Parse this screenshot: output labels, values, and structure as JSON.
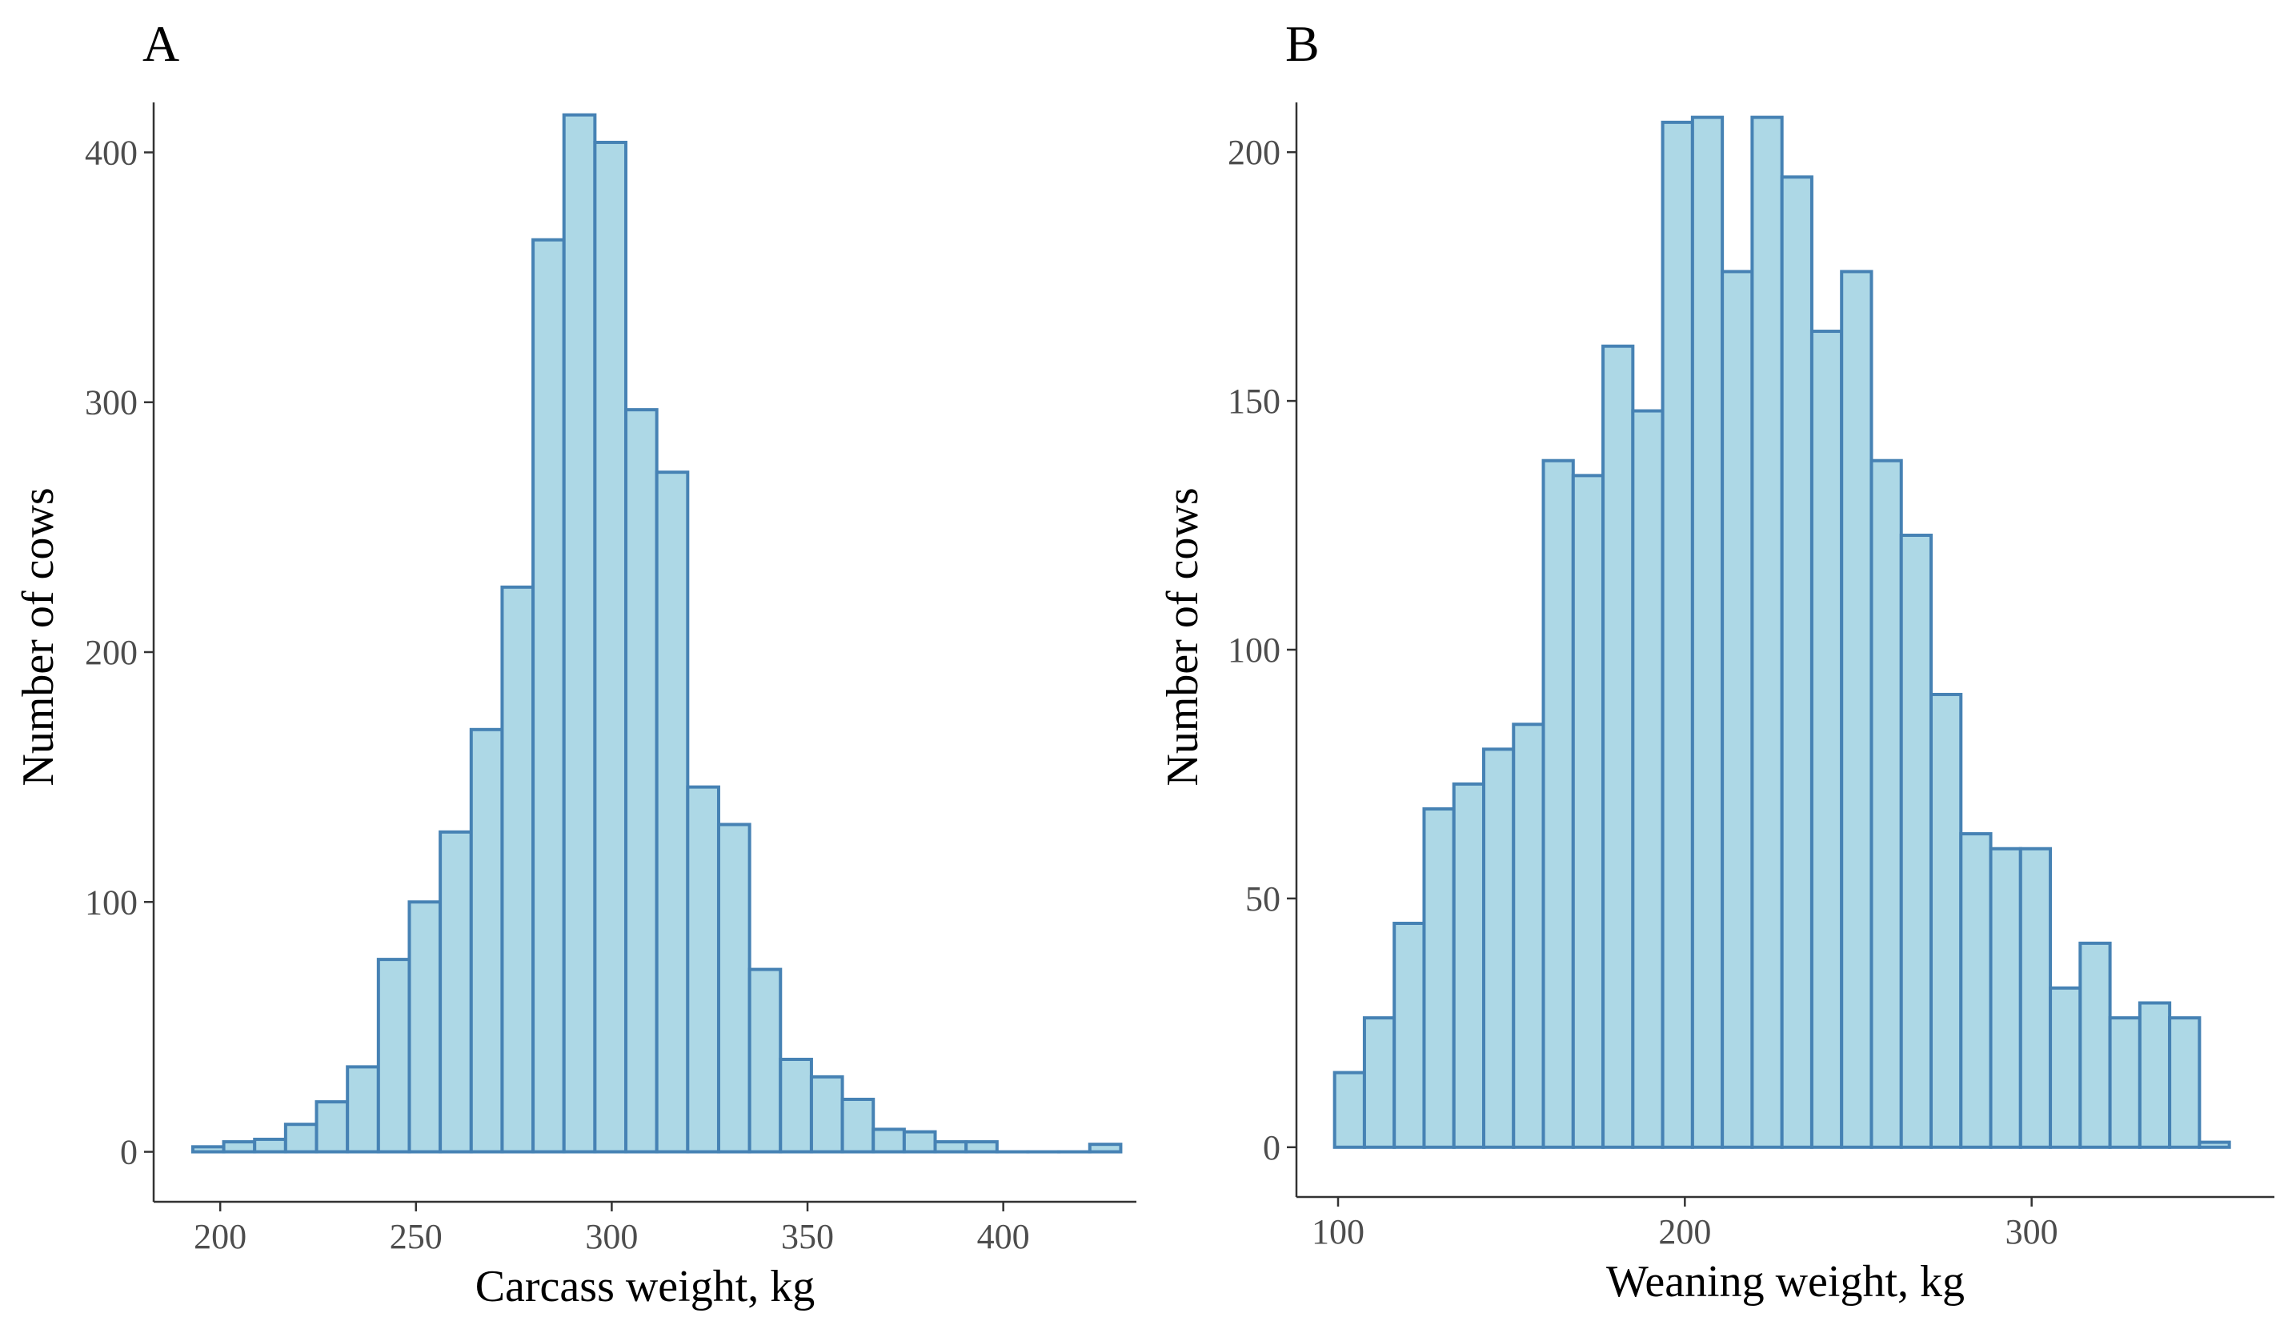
{
  "chart_data": [
    {
      "type": "bar",
      "panel_label": "A",
      "title": "",
      "xlabel": "Carcass weight, kg",
      "ylabel": "Number of cows",
      "xlim": [
        183,
        434
      ],
      "ylim": [
        -20,
        420
      ],
      "xticks": [
        200,
        250,
        300,
        350,
        400
      ],
      "yticks": [
        0,
        100,
        200,
        300,
        400
      ],
      "bin_start": 193,
      "bin_width": 7.9,
      "values": [
        2,
        4,
        5,
        11,
        20,
        34,
        77,
        100,
        128,
        169,
        226,
        365,
        415,
        404,
        297,
        272,
        146,
        131,
        73,
        37,
        30,
        21,
        9,
        8,
        4,
        4,
        0,
        0,
        0,
        3
      ],
      "fill_color": "#add8e6",
      "edge_color": "#4682b4",
      "grid": false,
      "legend": "none"
    },
    {
      "type": "bar",
      "panel_label": "B",
      "title": "",
      "xlabel": "Weaning weight, kg",
      "ylabel": "Number of cows",
      "xlim": [
        88,
        370
      ],
      "ylim": [
        -10,
        210
      ],
      "xticks": [
        100,
        200,
        300
      ],
      "yticks": [
        0,
        50,
        100,
        150,
        200
      ],
      "bin_start": 99,
      "bin_width": 8.6,
      "values": [
        15,
        26,
        45,
        68,
        73,
        80,
        85,
        138,
        135,
        161,
        148,
        206,
        207,
        176,
        207,
        195,
        164,
        176,
        138,
        123,
        91,
        63,
        60,
        60,
        32,
        41,
        26,
        29,
        26,
        1
      ],
      "fill_color": "#add8e6",
      "edge_color": "#4682b4",
      "grid": false,
      "legend": "none"
    }
  ]
}
